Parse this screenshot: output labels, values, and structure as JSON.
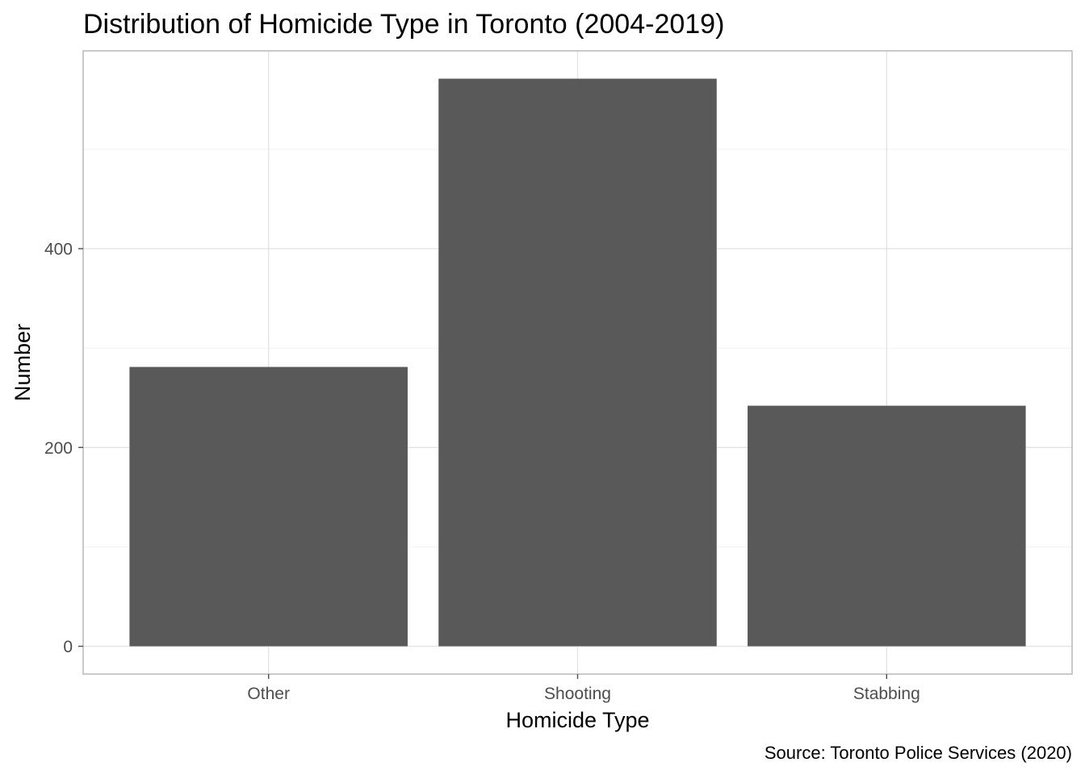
{
  "chart_data": {
    "type": "bar",
    "title": "Distribution of Homicide Type in Toronto (2004-2019)",
    "xlabel": "Homicide Type",
    "ylabel": "Number",
    "caption": "Source: Toronto Police Services (2020)",
    "categories": [
      "Other",
      "Shooting",
      "Stabbing"
    ],
    "values": [
      281,
      571,
      242
    ],
    "ylim": [
      -28,
      599
    ],
    "yticks": [
      0,
      200,
      400
    ],
    "yminor": [
      100,
      300,
      500
    ],
    "grid": true,
    "bar_color": "#595959",
    "legend": "none"
  }
}
